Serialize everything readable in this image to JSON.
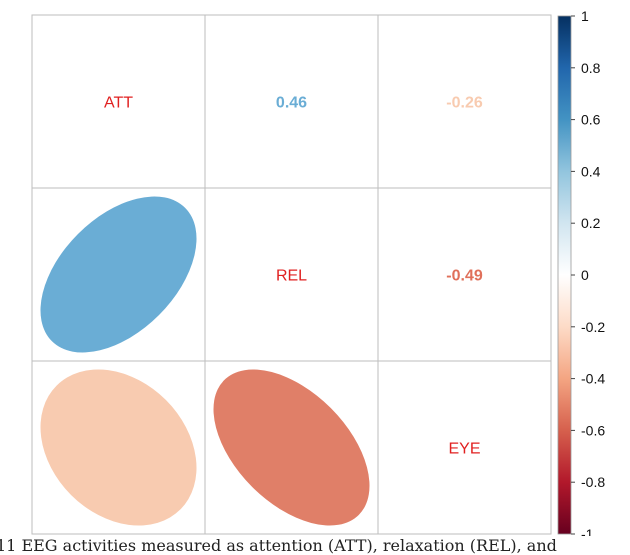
{
  "chart_data": {
    "type": "correlation-matrix",
    "variables": [
      "ATT",
      "REL",
      "EYE"
    ],
    "matrix": [
      [
        1.0,
        0.46,
        -0.26
      ],
      [
        0.46,
        1.0,
        -0.49
      ],
      [
        -0.26,
        -0.49,
        1.0
      ]
    ],
    "upper_labels": [
      {
        "row": 0,
        "col": 1,
        "text": "0.46",
        "value": 0.46
      },
      {
        "row": 0,
        "col": 2,
        "text": "-0.26",
        "value": -0.26
      },
      {
        "row": 1,
        "col": 2,
        "text": "-0.49",
        "value": -0.49
      }
    ],
    "lower_ellipses": [
      {
        "row": 1,
        "col": 0,
        "value": 0.46,
        "color": "#6aadd5"
      },
      {
        "row": 2,
        "col": 0,
        "value": -0.26,
        "color": "#f8cbb0"
      },
      {
        "row": 2,
        "col": 1,
        "value": -0.49,
        "color": "#e07f68"
      }
    ],
    "label_colors": {
      "diagonal": "#e02020",
      "positive": "#6aadd5",
      "weak_negative": "#f8cbb0",
      "negative": "#e0705a"
    },
    "colorbar": {
      "range": [
        -1,
        1
      ],
      "ticks": [
        "1",
        "0.8",
        "0.6",
        "0.4",
        "0.2",
        "0",
        "-0.2",
        "-0.4",
        "-0.6",
        "-0.8",
        "-1"
      ],
      "tick_values": [
        1,
        0.8,
        0.6,
        0.4,
        0.2,
        0,
        -0.2,
        -0.4,
        -0.6,
        -0.8,
        -1
      ],
      "colors": [
        "#67001f",
        "#b2182b",
        "#d6604d",
        "#f4a582",
        "#fddbc7",
        "#ffffff",
        "#d1e5f0",
        "#92c5de",
        "#4393c3",
        "#2166ac",
        "#053061"
      ]
    }
  },
  "caption": "11  EEG activities measured as attention (ATT), relaxation (REL), and"
}
